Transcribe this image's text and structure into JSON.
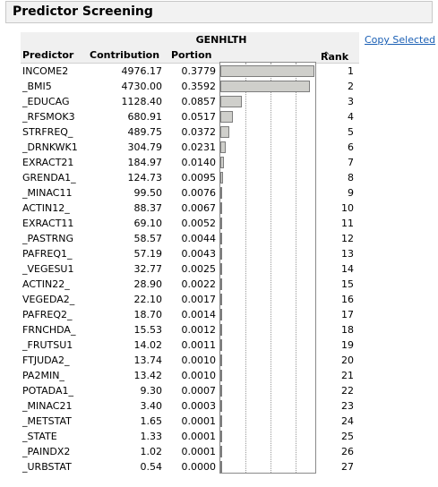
{
  "outline": {
    "title": "Predictor Screening"
  },
  "table": {
    "group_header": "GENHLTH",
    "columns": {
      "predictor": "Predictor",
      "contribution": "Contribution",
      "portion": "Portion",
      "rank": "Rank",
      "rank_sort_indicator": "^"
    },
    "rows": [
      {
        "predictor": "INCOME2",
        "contribution": "4976.17",
        "portion": "0.3779",
        "portion_value": 0.3779,
        "rank": "1"
      },
      {
        "predictor": "_BMI5",
        "contribution": "4730.00",
        "portion": "0.3592",
        "portion_value": 0.3592,
        "rank": "2"
      },
      {
        "predictor": "_EDUCAG",
        "contribution": "1128.40",
        "portion": "0.0857",
        "portion_value": 0.0857,
        "rank": "3"
      },
      {
        "predictor": "_RFSMOK3",
        "contribution": "680.91",
        "portion": "0.0517",
        "portion_value": 0.0517,
        "rank": "4"
      },
      {
        "predictor": "STRFREQ_",
        "contribution": "489.75",
        "portion": "0.0372",
        "portion_value": 0.0372,
        "rank": "5"
      },
      {
        "predictor": "_DRNKWK1",
        "contribution": "304.79",
        "portion": "0.0231",
        "portion_value": 0.0231,
        "rank": "6"
      },
      {
        "predictor": "EXRACT21",
        "contribution": "184.97",
        "portion": "0.0140",
        "portion_value": 0.014,
        "rank": "7"
      },
      {
        "predictor": "GRENDA1_",
        "contribution": "124.73",
        "portion": "0.0095",
        "portion_value": 0.0095,
        "rank": "8"
      },
      {
        "predictor": "_MINAC11",
        "contribution": "99.50",
        "portion": "0.0076",
        "portion_value": 0.0076,
        "rank": "9"
      },
      {
        "predictor": "ACTIN12_",
        "contribution": "88.37",
        "portion": "0.0067",
        "portion_value": 0.0067,
        "rank": "10"
      },
      {
        "predictor": "EXRACT11",
        "contribution": "69.10",
        "portion": "0.0052",
        "portion_value": 0.0052,
        "rank": "11"
      },
      {
        "predictor": "_PASTRNG",
        "contribution": "58.57",
        "portion": "0.0044",
        "portion_value": 0.0044,
        "rank": "12"
      },
      {
        "predictor": "PAFREQ1_",
        "contribution": "57.19",
        "portion": "0.0043",
        "portion_value": 0.0043,
        "rank": "13"
      },
      {
        "predictor": "_VEGESU1",
        "contribution": "32.77",
        "portion": "0.0025",
        "portion_value": 0.0025,
        "rank": "14"
      },
      {
        "predictor": "ACTIN22_",
        "contribution": "28.90",
        "portion": "0.0022",
        "portion_value": 0.0022,
        "rank": "15"
      },
      {
        "predictor": "VEGEDA2_",
        "contribution": "22.10",
        "portion": "0.0017",
        "portion_value": 0.0017,
        "rank": "16"
      },
      {
        "predictor": "PAFREQ2_",
        "contribution": "18.70",
        "portion": "0.0014",
        "portion_value": 0.0014,
        "rank": "17"
      },
      {
        "predictor": "FRNCHDA_",
        "contribution": "15.53",
        "portion": "0.0012",
        "portion_value": 0.0012,
        "rank": "18"
      },
      {
        "predictor": "_FRUTSU1",
        "contribution": "14.02",
        "portion": "0.0011",
        "portion_value": 0.0011,
        "rank": "19"
      },
      {
        "predictor": "FTJUDA2_",
        "contribution": "13.74",
        "portion": "0.0010",
        "portion_value": 0.001,
        "rank": "20"
      },
      {
        "predictor": "PA2MIN_",
        "contribution": "13.42",
        "portion": "0.0010",
        "portion_value": 0.001,
        "rank": "21"
      },
      {
        "predictor": "POTADA1_",
        "contribution": "9.30",
        "portion": "0.0007",
        "portion_value": 0.0007,
        "rank": "22"
      },
      {
        "predictor": "_MINAC21",
        "contribution": "3.40",
        "portion": "0.0003",
        "portion_value": 0.0003,
        "rank": "23"
      },
      {
        "predictor": "_METSTAT",
        "contribution": "1.65",
        "portion": "0.0001",
        "portion_value": 0.0001,
        "rank": "24"
      },
      {
        "predictor": "_STATE",
        "contribution": "1.33",
        "portion": "0.0001",
        "portion_value": 0.0001,
        "rank": "25"
      },
      {
        "predictor": "_PAINDX2",
        "contribution": "1.02",
        "portion": "0.0001",
        "portion_value": 0.0001,
        "rank": "26"
      },
      {
        "predictor": "_URBSTAT",
        "contribution": "0.54",
        "portion": "0.0000",
        "portion_value": 0.0,
        "rank": "27"
      }
    ],
    "bar_scale_max": 0.38,
    "bar_gridlines": [
      0.1,
      0.2,
      0.3
    ]
  },
  "actions": {
    "copy_selected": "Copy Selected"
  }
}
